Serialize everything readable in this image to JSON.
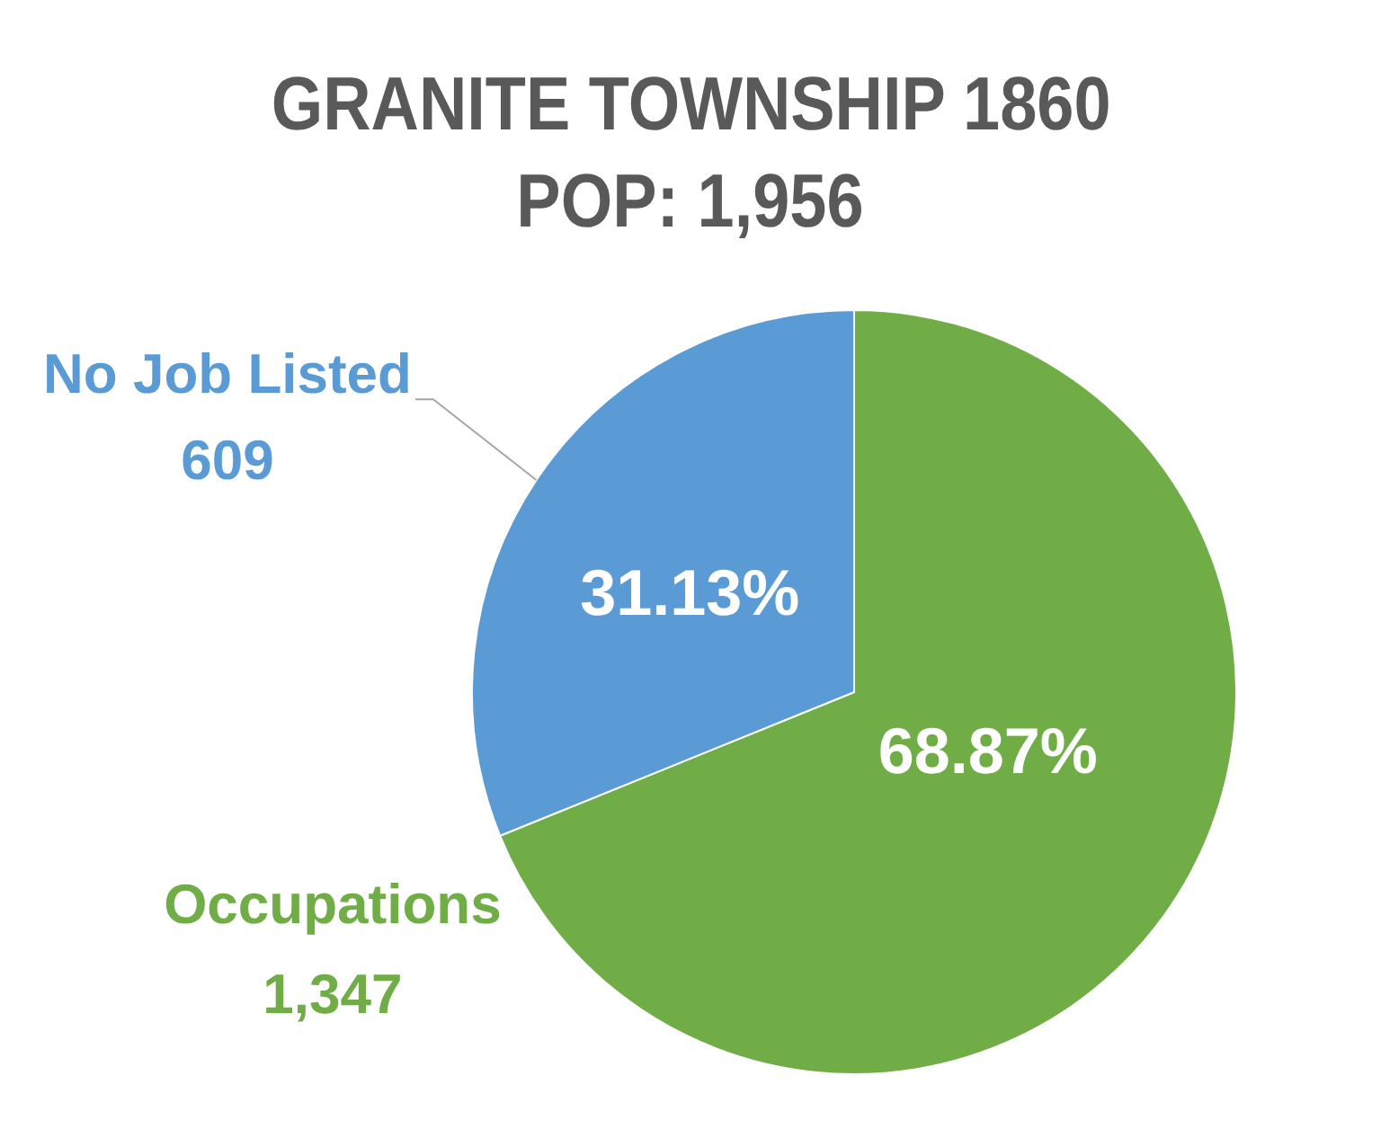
{
  "chart_data": {
    "type": "pie",
    "title": "GRANITE TOWNSHIP 1860",
    "subtitle": "POP: 1,956",
    "categories": [
      "Occupations",
      "No Job Listed"
    ],
    "values": [
      1347,
      609
    ],
    "colors": [
      "#70ad47",
      "#5b9bd5"
    ],
    "value_labels": [
      "1,347",
      "609"
    ],
    "annotations": [
      {
        "text": "68.87%",
        "x": "Occupations"
      },
      {
        "text": "31.13%",
        "x": "No Job Listed"
      }
    ],
    "legend": false
  }
}
